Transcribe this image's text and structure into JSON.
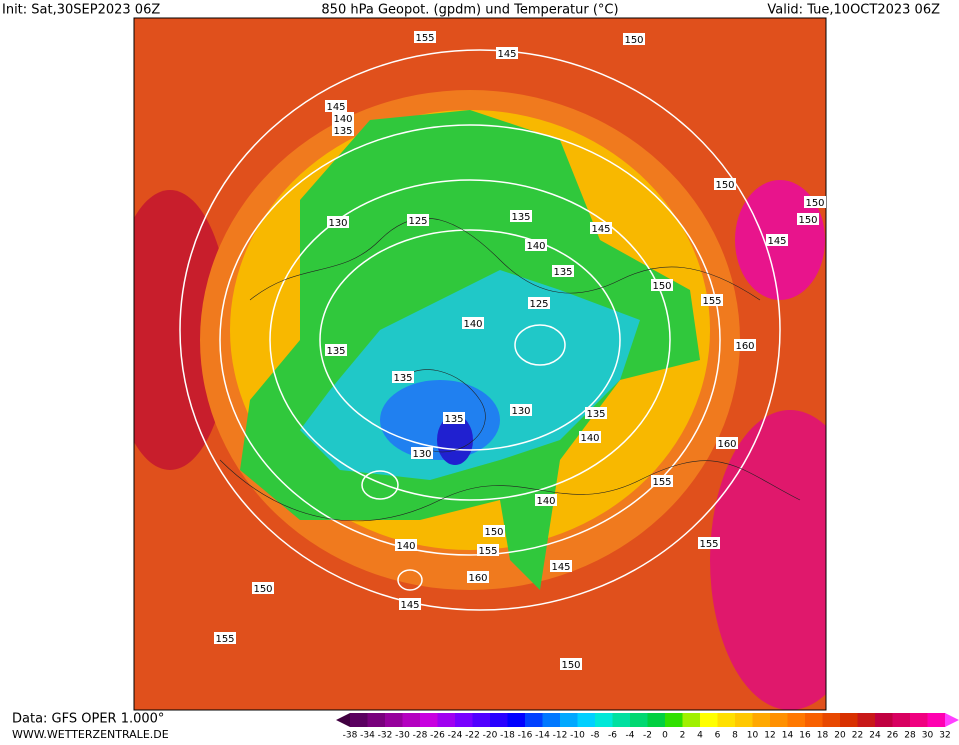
{
  "header": {
    "init": "Init: Sat,30SEP2023 06Z",
    "title": "850 hPa Geopot. (gpdm) und Temperatur (°C)",
    "valid": "Valid: Tue,10OCT2023 06Z"
  },
  "footer": {
    "source": "Data: GFS OPER 1.000°",
    "site": "WWW.WETTERZENTRALE.DE"
  },
  "contour_labels": [
    "155",
    "145",
    "150",
    "145",
    "140",
    "135",
    "150",
    "150",
    "150",
    "145",
    "130",
    "125",
    "135",
    "145",
    "140",
    "135",
    "150",
    "155",
    "125",
    "140",
    "160",
    "135",
    "135",
    "135",
    "130",
    "135",
    "140",
    "130",
    "160",
    "155",
    "140",
    "150",
    "140",
    "155",
    "155",
    "160",
    "145",
    "150",
    "145",
    "155",
    "150"
  ],
  "colorbar": {
    "labels": [
      "-38",
      "-34",
      "-32",
      "-30",
      "-28",
      "-26",
      "-24",
      "-22",
      "-20",
      "-18",
      "-16",
      "-14",
      "-12",
      "-10",
      "-8",
      "-6",
      "-4",
      "-2",
      "0",
      "2",
      "4",
      "6",
      "8",
      "10",
      "12",
      "14",
      "16",
      "18",
      "20",
      "22",
      "24",
      "26",
      "28",
      "30",
      "32"
    ],
    "colors": [
      "#5a0060",
      "#78007c",
      "#96009c",
      "#b400c0",
      "#c800e0",
      "#a000f0",
      "#7800ff",
      "#5000ff",
      "#2800ff",
      "#0000ff",
      "#0040ff",
      "#0078ff",
      "#00a8ff",
      "#00d0ff",
      "#00e8d8",
      "#00e0a0",
      "#00d870",
      "#00d040",
      "#30e000",
      "#a0f000",
      "#ffff00",
      "#ffe000",
      "#ffc800",
      "#ffa800",
      "#ff9000",
      "#ff7800",
      "#f86000",
      "#e84800",
      "#d83000",
      "#c81818",
      "#c00040",
      "#d80060",
      "#f00080",
      "#ff00b0"
    ],
    "low_color": "#400040",
    "high_color": "#ff40ff"
  }
}
